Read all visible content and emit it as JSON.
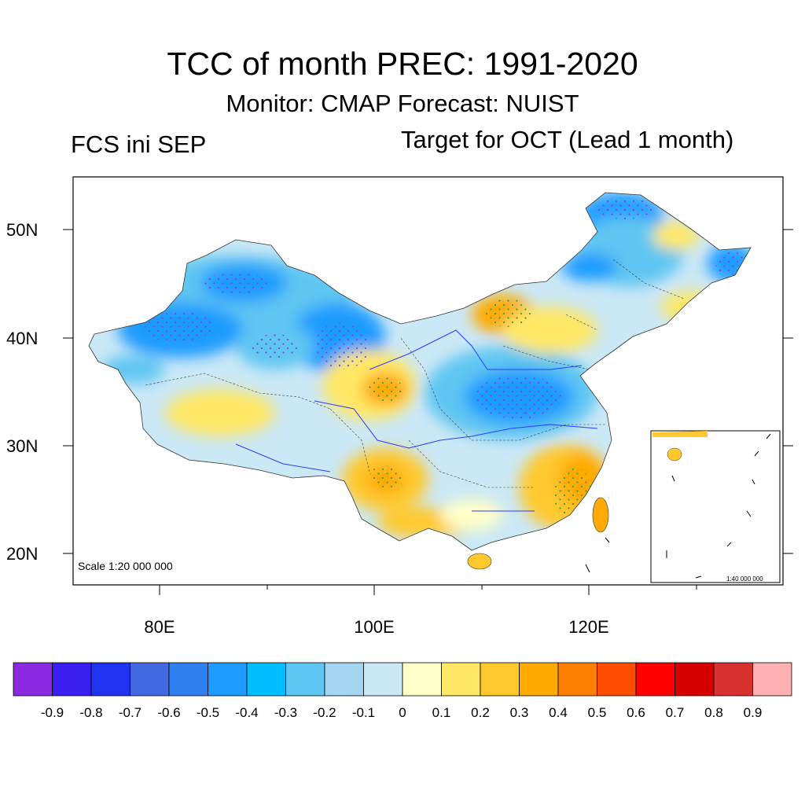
{
  "title": "TCC of month PREC: 1991-2020",
  "subtitle": "Monitor: CMAP   Forecast: NUIST",
  "left_label": "FCS ini SEP",
  "right_label": "Target for OCT (Lead 1 month)",
  "lat_labels": [
    "50N",
    "40N",
    "30N",
    "20N"
  ],
  "lon_labels": [
    "80E",
    "100E",
    "120E"
  ],
  "scale_main": "Scale 1:20 000 000",
  "scale_inset": "1:40 000 000",
  "colorbar": {
    "colors": [
      "#8a2be2",
      "#3b1ff2",
      "#1f33f0",
      "#4169e1",
      "#2f7ff0",
      "#1e9bff",
      "#00bfff",
      "#5ec6f2",
      "#a3d6f0",
      "#cbe8f6",
      "#ffffc8",
      "#ffe866",
      "#ffc92e",
      "#ffaa00",
      "#ff8000",
      "#ff4d00",
      "#ff0000",
      "#d60000",
      "#d93030",
      "#ffb0b0"
    ],
    "labels": [
      "-0.9",
      "-0.8",
      "-0.7",
      "-0.6",
      "-0.5",
      "-0.4",
      "-0.3",
      "-0.2",
      "-0.1",
      "0",
      "0.1",
      "0.2",
      "0.3",
      "0.4",
      "0.5",
      "0.6",
      "0.7",
      "0.8",
      "0.9"
    ]
  }
}
